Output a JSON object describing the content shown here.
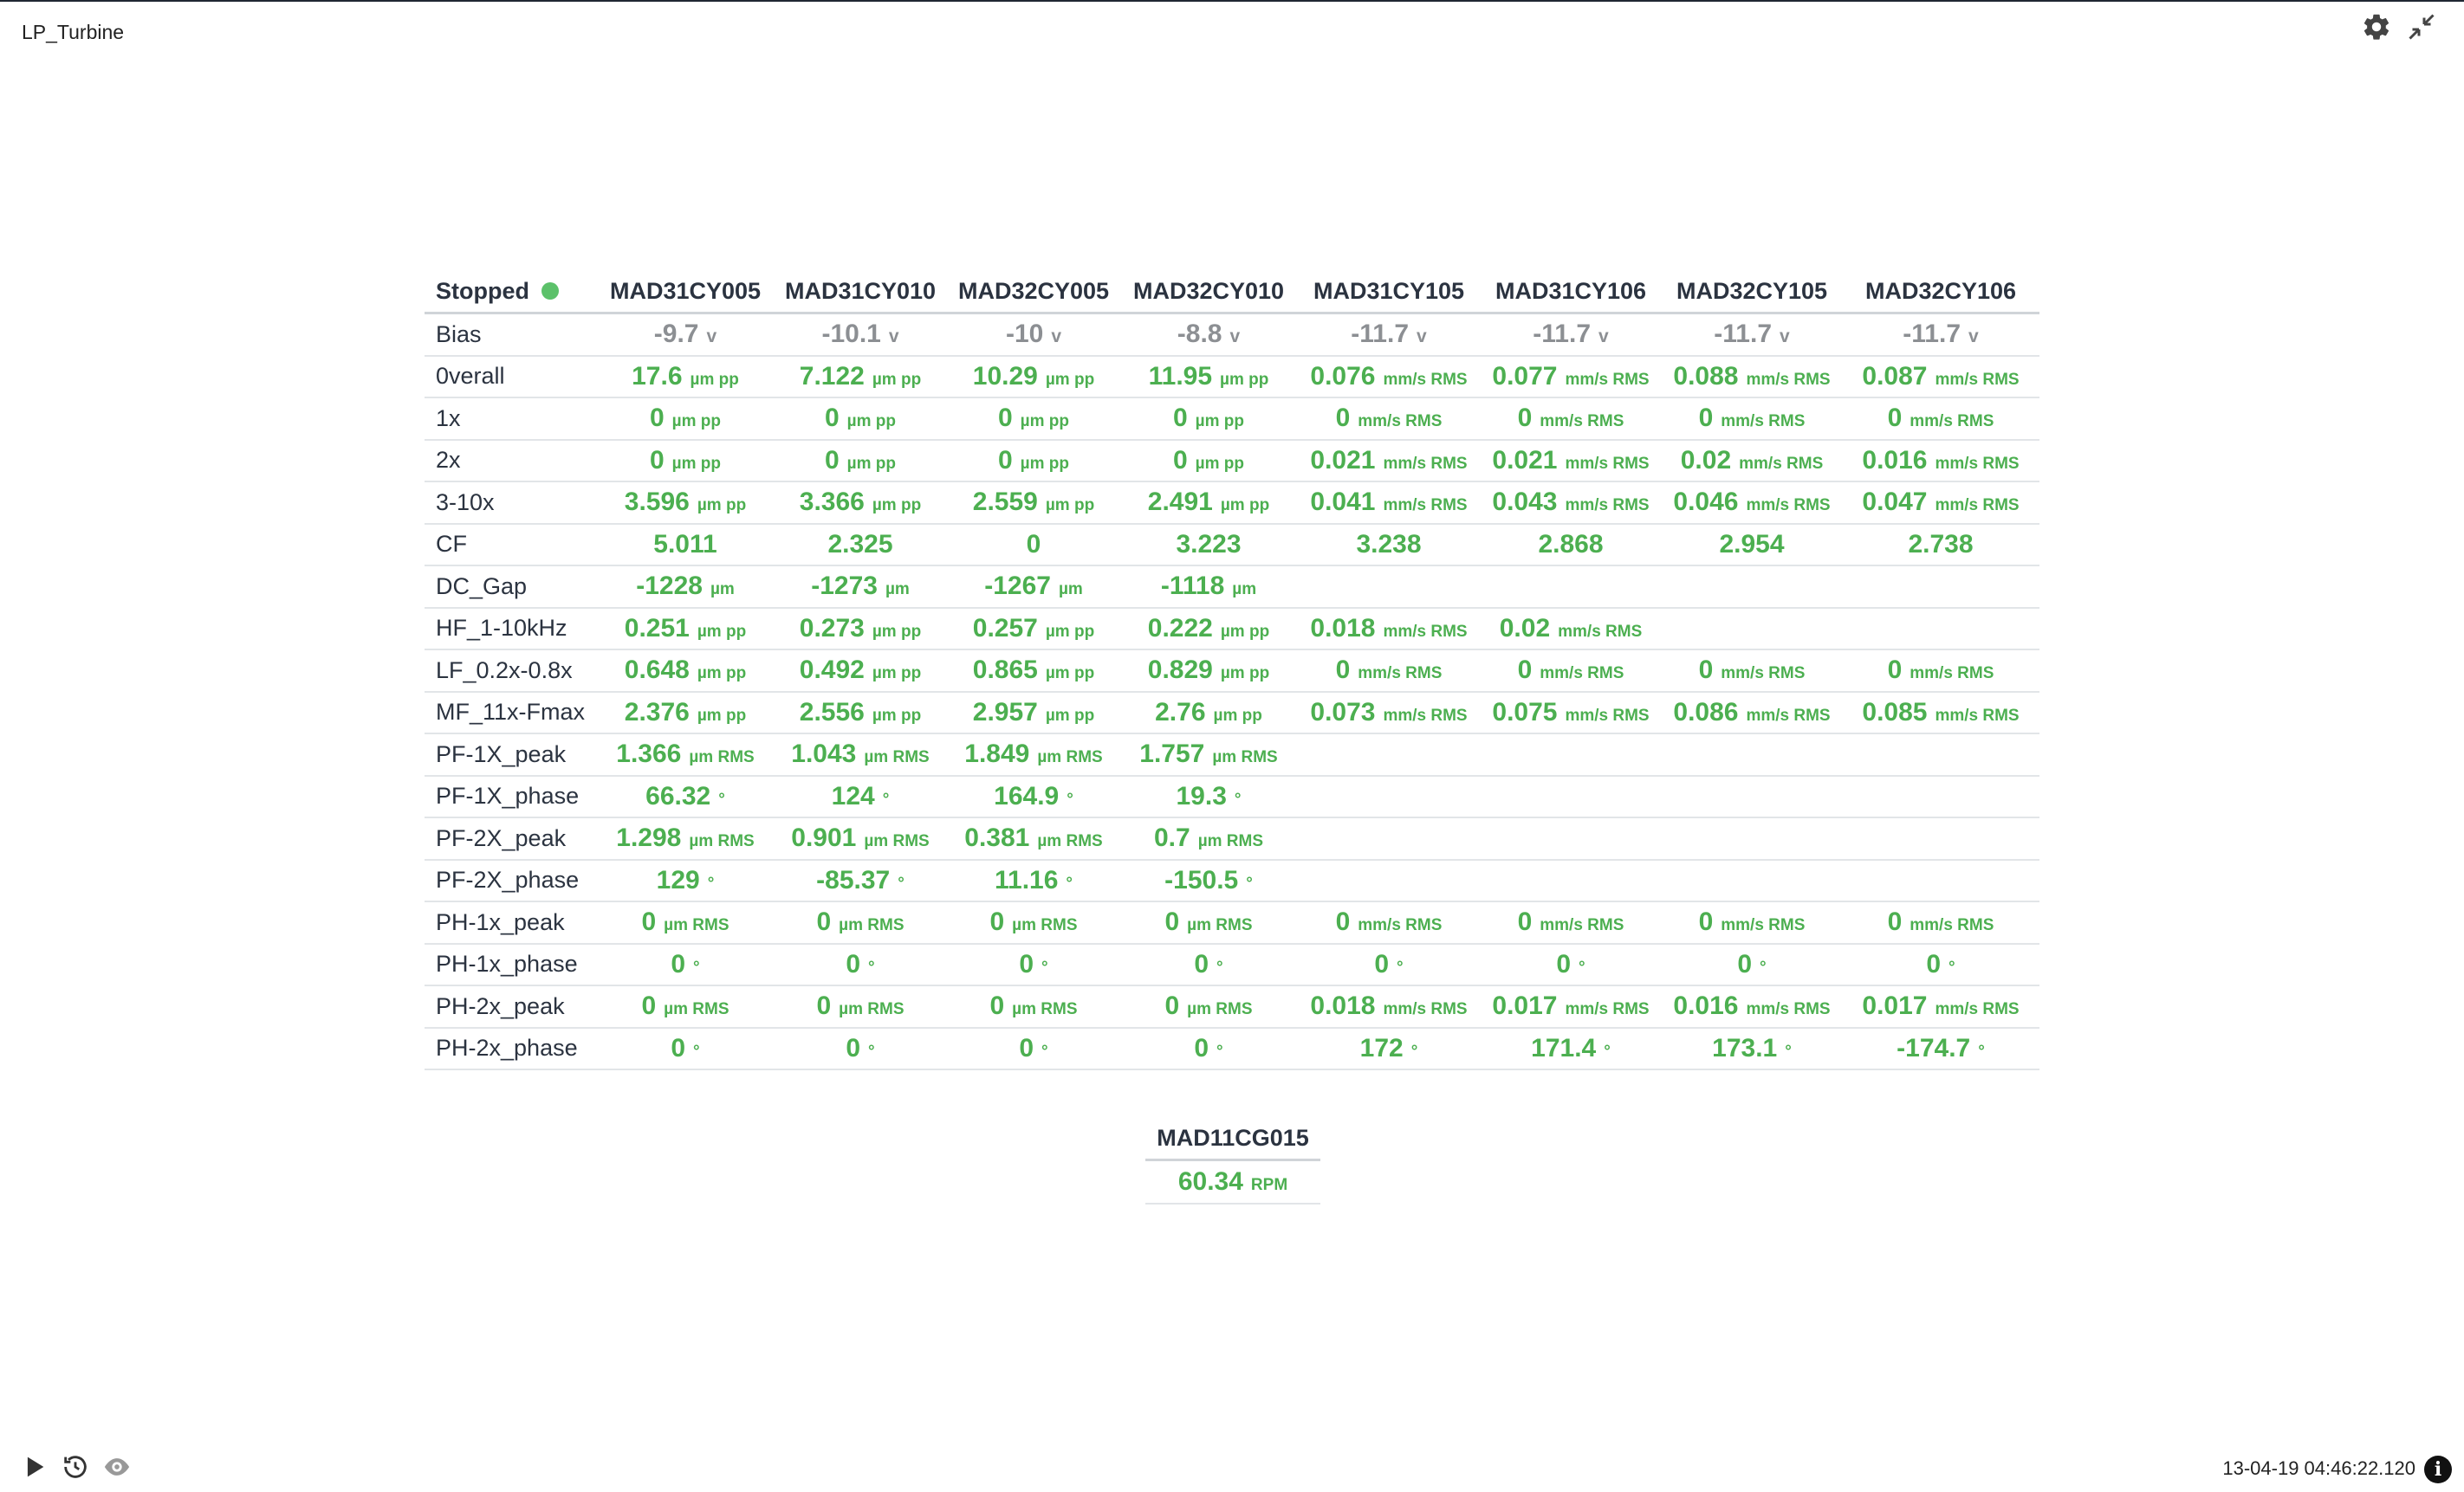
{
  "window": {
    "title": "LP_Turbine"
  },
  "top_icons": [
    {
      "icon": "gear-icon"
    },
    {
      "icon": "collapse-icon"
    }
  ],
  "table": {
    "status_label": "Stopped",
    "status_color": "#5cc16a",
    "columns": [
      "MAD31CY005",
      "MAD31CY010",
      "MAD32CY005",
      "MAD32CY010",
      "MAD31CY105",
      "MAD31CY106",
      "MAD32CY105",
      "MAD32CY106"
    ],
    "rows": [
      {
        "label": "Bias",
        "style": "gray",
        "cells": [
          [
            "-9.7",
            "v"
          ],
          [
            "-10.1",
            "v"
          ],
          [
            "-10",
            "v"
          ],
          [
            "-8.8",
            "v"
          ],
          [
            "-11.7",
            "v"
          ],
          [
            "-11.7",
            "v"
          ],
          [
            "-11.7",
            "v"
          ],
          [
            "-11.7",
            "v"
          ]
        ]
      },
      {
        "label": "0verall",
        "cells": [
          [
            "17.6",
            "µm pp"
          ],
          [
            "7.122",
            "µm pp"
          ],
          [
            "10.29",
            "µm pp"
          ],
          [
            "11.95",
            "µm pp"
          ],
          [
            "0.076",
            "mm/s RMS"
          ],
          [
            "0.077",
            "mm/s RMS"
          ],
          [
            "0.088",
            "mm/s RMS"
          ],
          [
            "0.087",
            "mm/s RMS"
          ]
        ]
      },
      {
        "label": "1x",
        "cells": [
          [
            "0",
            "µm pp"
          ],
          [
            "0",
            "µm pp"
          ],
          [
            "0",
            "µm pp"
          ],
          [
            "0",
            "µm pp"
          ],
          [
            "0",
            "mm/s RMS"
          ],
          [
            "0",
            "mm/s RMS"
          ],
          [
            "0",
            "mm/s RMS"
          ],
          [
            "0",
            "mm/s RMS"
          ]
        ]
      },
      {
        "label": "2x",
        "cells": [
          [
            "0",
            "µm pp"
          ],
          [
            "0",
            "µm pp"
          ],
          [
            "0",
            "µm pp"
          ],
          [
            "0",
            "µm pp"
          ],
          [
            "0.021",
            "mm/s RMS"
          ],
          [
            "0.021",
            "mm/s RMS"
          ],
          [
            "0.02",
            "mm/s RMS"
          ],
          [
            "0.016",
            "mm/s RMS"
          ]
        ]
      },
      {
        "label": "3-10x",
        "cells": [
          [
            "3.596",
            "µm pp"
          ],
          [
            "3.366",
            "µm pp"
          ],
          [
            "2.559",
            "µm pp"
          ],
          [
            "2.491",
            "µm pp"
          ],
          [
            "0.041",
            "mm/s RMS"
          ],
          [
            "0.043",
            "mm/s RMS"
          ],
          [
            "0.046",
            "mm/s RMS"
          ],
          [
            "0.047",
            "mm/s RMS"
          ]
        ]
      },
      {
        "label": "CF",
        "cells": [
          [
            "5.011",
            ""
          ],
          [
            "2.325",
            ""
          ],
          [
            "0",
            ""
          ],
          [
            "3.223",
            ""
          ],
          [
            "3.238",
            ""
          ],
          [
            "2.868",
            ""
          ],
          [
            "2.954",
            ""
          ],
          [
            "2.738",
            ""
          ]
        ]
      },
      {
        "label": "DC_Gap",
        "cells": [
          [
            "-1228",
            "µm"
          ],
          [
            "-1273",
            "µm"
          ],
          [
            "-1267",
            "µm"
          ],
          [
            "-1118",
            "µm"
          ],
          null,
          null,
          null,
          null
        ]
      },
      {
        "label": "HF_1-10kHz",
        "cells": [
          [
            "0.251",
            "µm pp"
          ],
          [
            "0.273",
            "µm pp"
          ],
          [
            "0.257",
            "µm pp"
          ],
          [
            "0.222",
            "µm pp"
          ],
          [
            "0.018",
            "mm/s RMS"
          ],
          [
            "0.02",
            "mm/s RMS"
          ],
          null,
          null
        ]
      },
      {
        "label": "LF_0.2x-0.8x",
        "cells": [
          [
            "0.648",
            "µm pp"
          ],
          [
            "0.492",
            "µm pp"
          ],
          [
            "0.865",
            "µm pp"
          ],
          [
            "0.829",
            "µm pp"
          ],
          [
            "0",
            "mm/s RMS"
          ],
          [
            "0",
            "mm/s RMS"
          ],
          [
            "0",
            "mm/s RMS"
          ],
          [
            "0",
            "mm/s RMS"
          ]
        ]
      },
      {
        "label": "MF_11x-Fmax",
        "cells": [
          [
            "2.376",
            "µm pp"
          ],
          [
            "2.556",
            "µm pp"
          ],
          [
            "2.957",
            "µm pp"
          ],
          [
            "2.76",
            "µm pp"
          ],
          [
            "0.073",
            "mm/s RMS"
          ],
          [
            "0.075",
            "mm/s RMS"
          ],
          [
            "0.086",
            "mm/s RMS"
          ],
          [
            "0.085",
            "mm/s RMS"
          ]
        ]
      },
      {
        "label": "PF-1X_peak",
        "cells": [
          [
            "1.366",
            "µm RMS"
          ],
          [
            "1.043",
            "µm RMS"
          ],
          [
            "1.849",
            "µm RMS"
          ],
          [
            "1.757",
            "µm RMS"
          ],
          null,
          null,
          null,
          null
        ]
      },
      {
        "label": "PF-1X_phase",
        "cells": [
          [
            "66.32",
            "°"
          ],
          [
            "124",
            "°"
          ],
          [
            "164.9",
            "°"
          ],
          [
            "19.3",
            "°"
          ],
          null,
          null,
          null,
          null
        ]
      },
      {
        "label": "PF-2X_peak",
        "cells": [
          [
            "1.298",
            "µm RMS"
          ],
          [
            "0.901",
            "µm RMS"
          ],
          [
            "0.381",
            "µm RMS"
          ],
          [
            "0.7",
            "µm RMS"
          ],
          null,
          null,
          null,
          null
        ]
      },
      {
        "label": "PF-2X_phase",
        "cells": [
          [
            "129",
            "°"
          ],
          [
            "-85.37",
            "°"
          ],
          [
            "11.16",
            "°"
          ],
          [
            "-150.5",
            "°"
          ],
          null,
          null,
          null,
          null
        ]
      },
      {
        "label": "PH-1x_peak",
        "cells": [
          [
            "0",
            "µm RMS"
          ],
          [
            "0",
            "µm RMS"
          ],
          [
            "0",
            "µm RMS"
          ],
          [
            "0",
            "µm RMS"
          ],
          [
            "0",
            "mm/s RMS"
          ],
          [
            "0",
            "mm/s RMS"
          ],
          [
            "0",
            "mm/s RMS"
          ],
          [
            "0",
            "mm/s RMS"
          ]
        ]
      },
      {
        "label": "PH-1x_phase",
        "cells": [
          [
            "0",
            "°"
          ],
          [
            "0",
            "°"
          ],
          [
            "0",
            "°"
          ],
          [
            "0",
            "°"
          ],
          [
            "0",
            "°"
          ],
          [
            "0",
            "°"
          ],
          [
            "0",
            "°"
          ],
          [
            "0",
            "°"
          ]
        ]
      },
      {
        "label": "PH-2x_peak",
        "cells": [
          [
            "0",
            "µm RMS"
          ],
          [
            "0",
            "µm RMS"
          ],
          [
            "0",
            "µm RMS"
          ],
          [
            "0",
            "µm RMS"
          ],
          [
            "0.018",
            "mm/s RMS"
          ],
          [
            "0.017",
            "mm/s RMS"
          ],
          [
            "0.016",
            "mm/s RMS"
          ],
          [
            "0.017",
            "mm/s RMS"
          ]
        ]
      },
      {
        "label": "PH-2x_phase",
        "cells": [
          [
            "0",
            "°"
          ],
          [
            "0",
            "°"
          ],
          [
            "0",
            "°"
          ],
          [
            "0",
            "°"
          ],
          [
            "172",
            "°"
          ],
          [
            "171.4",
            "°"
          ],
          [
            "173.1",
            "°"
          ],
          [
            "-174.7",
            "°"
          ]
        ]
      }
    ]
  },
  "rpm": {
    "tag": "MAD11CG015",
    "value": "60.34",
    "unit": "RPM"
  },
  "bottom_icons": [
    {
      "icon": "play-icon"
    },
    {
      "icon": "history-icon"
    },
    {
      "icon": "eye-icon"
    }
  ],
  "footer": {
    "timestamp": "13-04-19 04:46:22.120",
    "info_icon": "info-icon"
  },
  "colors": {
    "value_green": "#4caf50",
    "bias_gray": "#8c8f93"
  }
}
